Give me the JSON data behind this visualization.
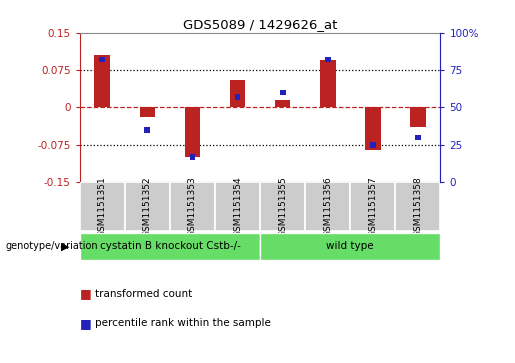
{
  "title": "GDS5089 / 1429626_at",
  "samples": [
    "GSM1151351",
    "GSM1151352",
    "GSM1151353",
    "GSM1151354",
    "GSM1151355",
    "GSM1151356",
    "GSM1151357",
    "GSM1151358"
  ],
  "red_values": [
    0.105,
    -0.02,
    -0.1,
    0.055,
    0.015,
    0.095,
    -0.085,
    -0.04
  ],
  "blue_values_pct": [
    82,
    35,
    17,
    57,
    60,
    82,
    25,
    30
  ],
  "ylim_left": [
    -0.15,
    0.15
  ],
  "ylim_right": [
    0,
    100
  ],
  "yticks_left": [
    -0.15,
    -0.075,
    0,
    0.075,
    0.15
  ],
  "yticks_right": [
    0,
    25,
    50,
    75,
    100
  ],
  "hlines_dotted": [
    0.075,
    -0.075
  ],
  "hline_zero": 0,
  "group_configs": [
    {
      "start": 0,
      "end": 3,
      "label": "cystatin B knockout Cstb-/-",
      "color": "#66dd66"
    },
    {
      "start": 4,
      "end": 7,
      "label": "wild type",
      "color": "#66dd66"
    }
  ],
  "group_row_label": "genotype/variation",
  "legend_red": "transformed count",
  "legend_blue": "percentile rank within the sample",
  "red_color": "#bb2222",
  "blue_color": "#2222bb",
  "bar_width": 0.35,
  "blue_bar_width": 0.13,
  "background_color": "#ffffff",
  "label_row_bg": "#cccccc",
  "plot_border_color": "#aaaaaa"
}
